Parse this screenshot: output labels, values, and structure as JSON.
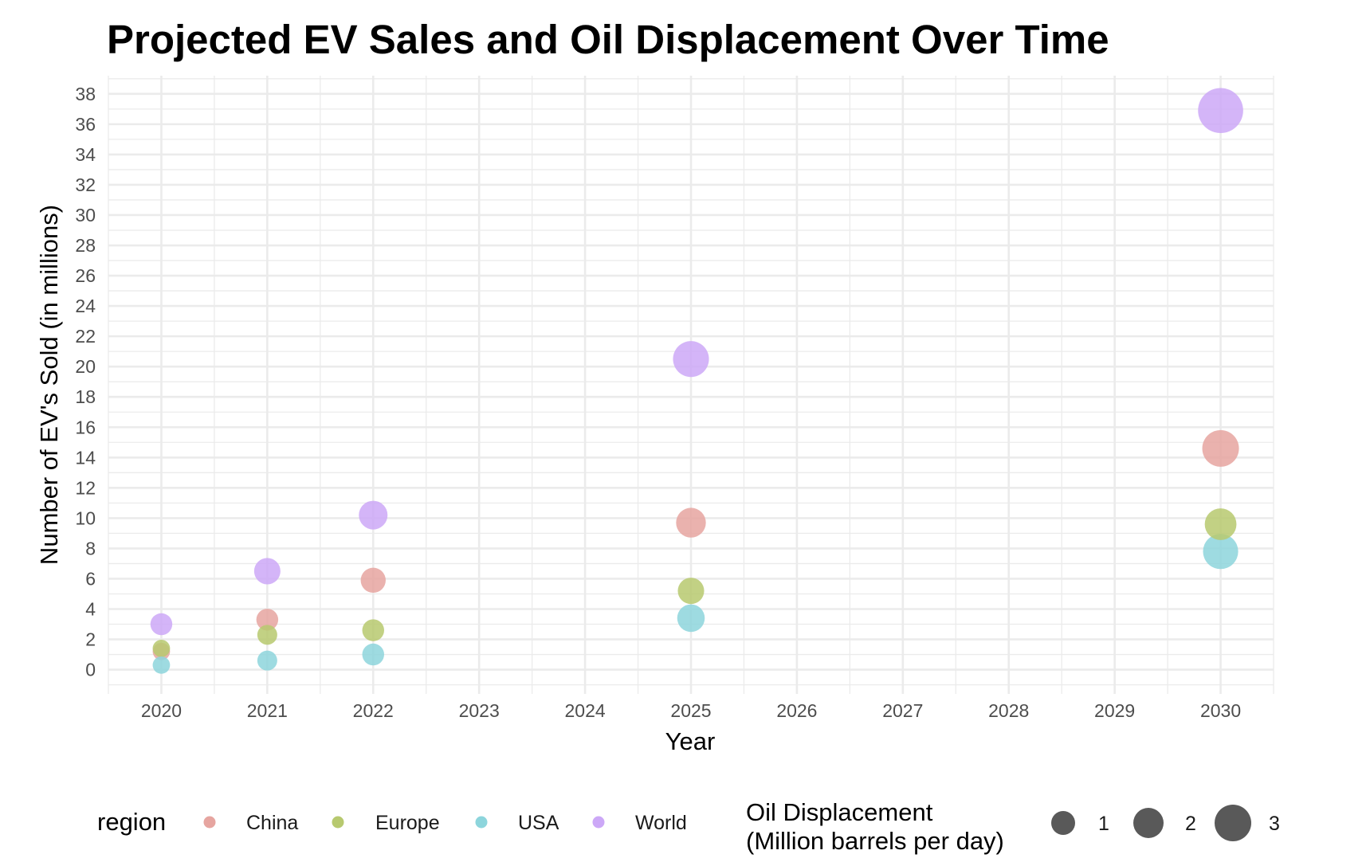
{
  "chart_data": {
    "type": "scatter",
    "title": "Projected EV Sales and Oil Displacement Over Time",
    "xlabel": "Year",
    "ylabel": "Number of EV's Sold (in millions)",
    "x_ticks": [
      2020,
      2021,
      2022,
      2023,
      2024,
      2025,
      2026,
      2027,
      2028,
      2029,
      2030
    ],
    "y_ticks": [
      0,
      2,
      4,
      6,
      8,
      10,
      12,
      14,
      16,
      18,
      20,
      22,
      24,
      26,
      28,
      30,
      32,
      34,
      36,
      38
    ],
    "xlim": [
      2019.5,
      2030.5
    ],
    "ylim": [
      -1.6,
      39.2
    ],
    "grid": true,
    "legend_placement": "bottom",
    "color_legend": {
      "title": "region",
      "entries": [
        {
          "name": "China",
          "color": "#E6A5A0"
        },
        {
          "name": "Europe",
          "color": "#B7C96F"
        },
        {
          "name": "USA",
          "color": "#8DD5DC"
        },
        {
          "name": "World",
          "color": "#CCA8F7"
        }
      ]
    },
    "size_legend": {
      "title_line1": "Oil Displacement",
      "title_line2": "(Million barrels per day)",
      "entries": [
        {
          "label": "1",
          "value": 1
        },
        {
          "label": "2",
          "value": 2
        },
        {
          "label": "3",
          "value": 3
        }
      ]
    },
    "series": [
      {
        "name": "China",
        "color": "#E6A5A0",
        "points": [
          {
            "x": 2020,
            "y": 1.2,
            "size": 0.1
          },
          {
            "x": 2021,
            "y": 3.3,
            "size": 0.3
          },
          {
            "x": 2022,
            "y": 5.9,
            "size": 0.5
          },
          {
            "x": 2025,
            "y": 9.7,
            "size": 0.9
          },
          {
            "x": 2030,
            "y": 14.6,
            "size": 1.7
          }
        ]
      },
      {
        "name": "Europe",
        "color": "#B7C96F",
        "points": [
          {
            "x": 2020,
            "y": 1.4,
            "size": 0.1
          },
          {
            "x": 2021,
            "y": 2.3,
            "size": 0.2
          },
          {
            "x": 2022,
            "y": 2.6,
            "size": 0.3
          },
          {
            "x": 2025,
            "y": 5.2,
            "size": 0.6
          },
          {
            "x": 2030,
            "y": 9.6,
            "size": 1.1
          }
        ]
      },
      {
        "name": "USA",
        "color": "#8DD5DC",
        "points": [
          {
            "x": 2020,
            "y": 0.3,
            "size": 0.1
          },
          {
            "x": 2021,
            "y": 0.6,
            "size": 0.2
          },
          {
            "x": 2022,
            "y": 1.0,
            "size": 0.3
          },
          {
            "x": 2025,
            "y": 3.4,
            "size": 0.7
          },
          {
            "x": 2030,
            "y": 7.8,
            "size": 1.5
          }
        ]
      },
      {
        "name": "World",
        "color": "#CCA8F7",
        "points": [
          {
            "x": 2020,
            "y": 3.0,
            "size": 0.3
          },
          {
            "x": 2021,
            "y": 6.5,
            "size": 0.6
          },
          {
            "x": 2022,
            "y": 10.2,
            "size": 0.8
          },
          {
            "x": 2025,
            "y": 20.5,
            "size": 1.6
          },
          {
            "x": 2030,
            "y": 36.9,
            "size": 3.0
          }
        ]
      }
    ]
  }
}
